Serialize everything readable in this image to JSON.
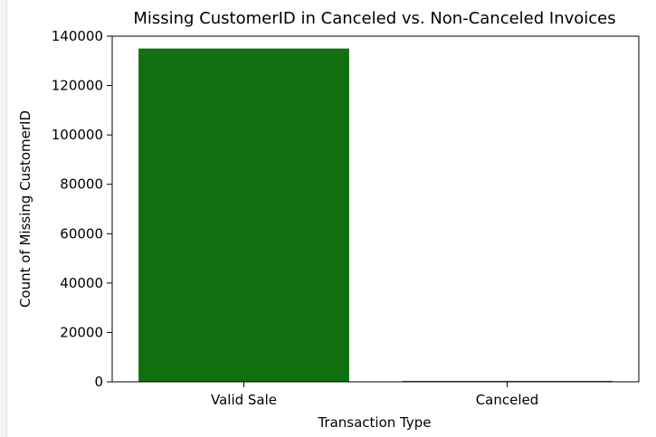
{
  "chart_data": {
    "type": "bar",
    "title": "Missing CustomerID in Canceled vs. Non-Canceled Invoices",
    "xlabel": "Transaction Type",
    "ylabel": "Count of Missing CustomerID",
    "categories": [
      "Valid Sale",
      "Canceled"
    ],
    "values": [
      135000,
      383
    ],
    "colors": [
      "#107010",
      "#d62728"
    ],
    "ylim": [
      0,
      140000
    ],
    "yticks": [
      0,
      20000,
      40000,
      60000,
      80000,
      100000,
      120000,
      140000
    ],
    "ytick_labels": [
      "0",
      "20000",
      "40000",
      "60000",
      "80000",
      "100000",
      "120000",
      "140000"
    ],
    "grid": false,
    "legend": "none"
  }
}
